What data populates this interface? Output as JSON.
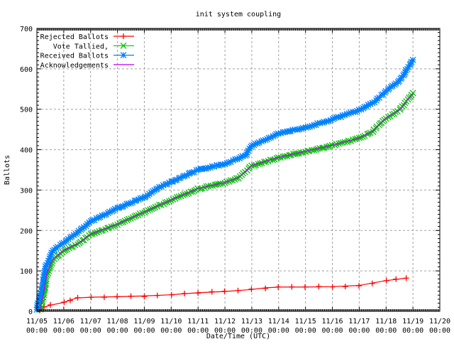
{
  "chart_data": {
    "type": "line",
    "title": "init system coupling",
    "xlabel": "Date/Time (UTC)",
    "ylabel": "Ballots",
    "xlim": [
      "11/05 00:00",
      "11/20 00:00"
    ],
    "ylim": [
      0,
      700
    ],
    "grid": true,
    "legend_position": "top-left",
    "x_ticks": [
      "11/05",
      "11/06",
      "11/07",
      "11/08",
      "11/09",
      "11/10",
      "11/11",
      "11/12",
      "11/13",
      "11/14",
      "11/15",
      "11/16",
      "11/17",
      "11/18",
      "11/19",
      "11/20"
    ],
    "x_tick_time": "00:00",
    "y_ticks": [
      0,
      100,
      200,
      300,
      400,
      500,
      600,
      700
    ],
    "series": [
      {
        "name": "Rejected Ballots",
        "color": "#ff0000",
        "marker": "plus",
        "points": [
          [
            "11/05 03:00",
            2
          ],
          [
            "11/05 06:00",
            10
          ],
          [
            "11/05 12:00",
            15
          ],
          [
            "11/06 00:00",
            22
          ],
          [
            "11/06 06:00",
            28
          ],
          [
            "11/06 12:00",
            33
          ],
          [
            "11/07 00:00",
            35
          ],
          [
            "11/08 00:00",
            36
          ],
          [
            "11/09 00:00",
            38
          ],
          [
            "11/10 00:00",
            41
          ],
          [
            "11/11 00:00",
            46
          ],
          [
            "11/12 00:00",
            49
          ],
          [
            "11/13 00:00",
            54
          ],
          [
            "11/13 12:00",
            58
          ],
          [
            "11/14 00:00",
            60
          ],
          [
            "11/15 00:00",
            60
          ],
          [
            "11/16 00:00",
            61
          ],
          [
            "11/17 00:00",
            64
          ],
          [
            "11/17 12:00",
            70
          ],
          [
            "11/18 00:00",
            76
          ],
          [
            "11/18 18:00",
            82
          ]
        ]
      },
      {
        "name": "Vote Tallied,",
        "color": "#00c000",
        "marker": "cross",
        "points": [
          [
            "11/05 03:00",
            5
          ],
          [
            "11/05 06:00",
            40
          ],
          [
            "11/05 09:00",
            90
          ],
          [
            "11/05 14:00",
            125
          ],
          [
            "11/06 00:00",
            150
          ],
          [
            "11/06 12:00",
            165
          ],
          [
            "11/07 00:00",
            190
          ],
          [
            "11/08 00:00",
            215
          ],
          [
            "11/09 00:00",
            245
          ],
          [
            "11/10 00:00",
            275
          ],
          [
            "11/11 00:00",
            303
          ],
          [
            "11/12 00:00",
            318
          ],
          [
            "11/12 12:00",
            330
          ],
          [
            "11/13 00:00",
            360
          ],
          [
            "11/14 00:00",
            380
          ],
          [
            "11/15 00:00",
            395
          ],
          [
            "11/16 00:00",
            410
          ],
          [
            "11/17 00:00",
            428
          ],
          [
            "11/17 12:00",
            445
          ],
          [
            "11/18 00:00",
            478
          ],
          [
            "11/18 12:00",
            498
          ],
          [
            "11/19 00:00",
            540
          ]
        ]
      },
      {
        "name": "Received Ballots",
        "color": "#0080ff",
        "marker": "star",
        "points": [
          [
            "11/05 00:00",
            5
          ],
          [
            "11/05 04:00",
            50
          ],
          [
            "11/05 08:00",
            110
          ],
          [
            "11/05 14:00",
            150
          ],
          [
            "11/06 00:00",
            170
          ],
          [
            "11/06 12:00",
            195
          ],
          [
            "11/07 00:00",
            222
          ],
          [
            "11/08 00:00",
            255
          ],
          [
            "11/09 00:00",
            282
          ],
          [
            "11/09 12:00",
            305
          ],
          [
            "11/10 00:00",
            320
          ],
          [
            "11/11 00:00",
            350
          ],
          [
            "11/12 00:00",
            365
          ],
          [
            "11/12 18:00",
            385
          ],
          [
            "11/13 00:00",
            410
          ],
          [
            "11/14 00:00",
            440
          ],
          [
            "11/15 00:00",
            455
          ],
          [
            "11/16 00:00",
            475
          ],
          [
            "11/17 00:00",
            498
          ],
          [
            "11/17 12:00",
            515
          ],
          [
            "11/18 00:00",
            545
          ],
          [
            "11/18 12:00",
            570
          ],
          [
            "11/19 00:00",
            622
          ]
        ]
      },
      {
        "name": "Acknowledgements",
        "color": "#c000ff",
        "marker": "none",
        "points": [
          [
            "11/05 03:00",
            5
          ],
          [
            "11/05 06:00",
            45
          ],
          [
            "11/05 09:00",
            95
          ],
          [
            "11/05 14:00",
            128
          ],
          [
            "11/06 00:00",
            152
          ],
          [
            "11/06 12:00",
            166
          ],
          [
            "11/07 00:00",
            191
          ],
          [
            "11/08 00:00",
            216
          ],
          [
            "11/09 00:00",
            246
          ],
          [
            "11/10 00:00",
            276
          ],
          [
            "11/11 00:00",
            304
          ],
          [
            "11/12 00:00",
            319
          ],
          [
            "11/12 12:00",
            331
          ],
          [
            "11/13 00:00",
            361
          ],
          [
            "11/14 00:00",
            381
          ],
          [
            "11/15 00:00",
            396
          ],
          [
            "11/16 00:00",
            411
          ],
          [
            "11/17 00:00",
            429
          ],
          [
            "11/17 12:00",
            446
          ],
          [
            "11/18 00:00",
            479
          ],
          [
            "11/18 12:00",
            499
          ],
          [
            "11/19 00:00",
            540
          ]
        ]
      }
    ]
  }
}
